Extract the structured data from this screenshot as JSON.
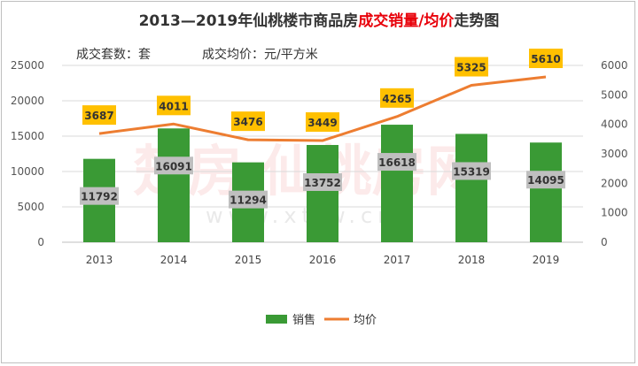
{
  "title": {
    "prefix": "2013—2019年仙桃楼市商品房",
    "highlight": "成交销量/均价",
    "suffix": "走势图"
  },
  "notes": {
    "left": "成交套数：套",
    "right": "成交均价：元/平方米"
  },
  "watermark": {
    "main": "楚房 仙桃房网",
    "url": "www.xtfw.cn"
  },
  "colors": {
    "bar": "#3a9a35",
    "line": "#ed7d31",
    "bar_label_bg": "#bfbfbf",
    "line_label_bg": "#ffc000",
    "title_highlight": "#e8000a"
  },
  "chart_data": {
    "type": "bar+line",
    "categories": [
      "2013",
      "2014",
      "2015",
      "2016",
      "2017",
      "2018",
      "2019"
    ],
    "series": [
      {
        "name": "销售",
        "type": "bar",
        "axis": "left",
        "values": [
          11792,
          16091,
          11294,
          13752,
          16618,
          15319,
          14095
        ]
      },
      {
        "name": "均价",
        "type": "line",
        "axis": "right",
        "values": [
          3687,
          4011,
          3476,
          3449,
          4265,
          5325,
          5610
        ]
      }
    ],
    "left_axis": {
      "ylim": [
        0,
        25000
      ],
      "ticks": [
        0,
        5000,
        10000,
        15000,
        20000,
        25000
      ]
    },
    "right_axis": {
      "ylim": [
        0,
        6000
      ],
      "ticks": [
        0,
        1000,
        2000,
        3000,
        4000,
        5000,
        6000
      ]
    },
    "grid": true,
    "legend": "bottom"
  }
}
